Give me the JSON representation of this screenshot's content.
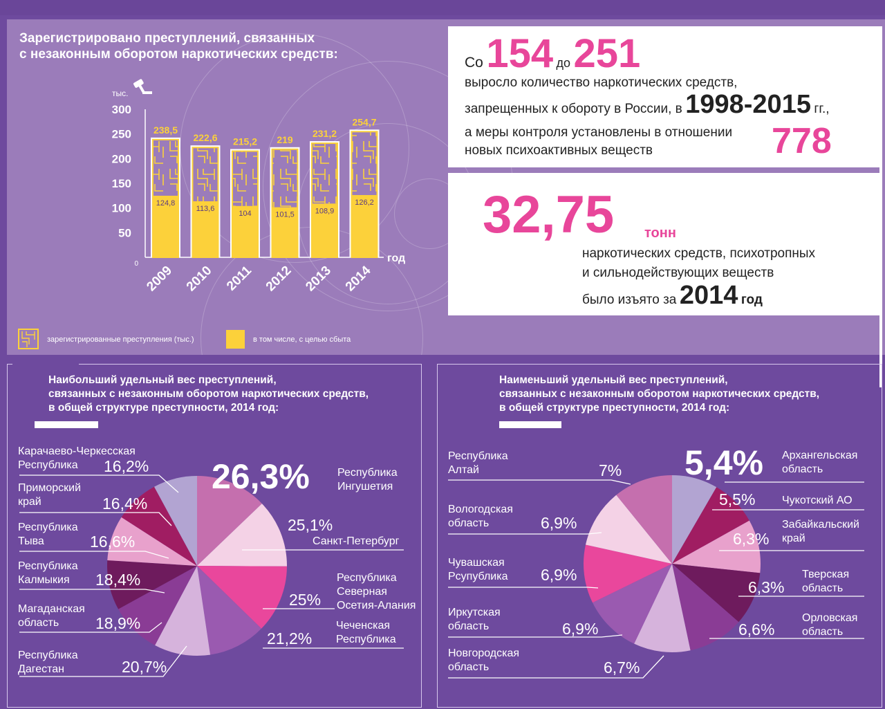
{
  "header": {
    "title_line1": "Зарегистрировано преступлений, связанных",
    "title_line2": "с незаконным оборотом наркотических средств:"
  },
  "chart_data": [
    {
      "type": "bar",
      "categories": [
        "2009",
        "2010",
        "2011",
        "2012",
        "2013",
        "2014"
      ],
      "series": [
        {
          "name": "зарегистрированные преступления (тыс.)",
          "values": [
            238.5,
            222.6,
            215.2,
            219,
            231.2,
            254.7
          ]
        },
        {
          "name": "в том числе, с целью сбыта",
          "values": [
            124.8,
            113.6,
            104,
            101.5,
            108.9,
            126.2
          ]
        }
      ],
      "total_labels": [
        "238,5",
        "222,6",
        "215,2",
        "219",
        "231,2",
        "254,7"
      ],
      "part_labels": [
        "124,8",
        "113,6",
        "104",
        "101,5",
        "108,9",
        "126,2"
      ],
      "yunit": "тыс.",
      "xlabel": "год",
      "yticks": [
        "300",
        "250",
        "200",
        "150",
        "100",
        "50",
        "0"
      ],
      "ylim": [
        0,
        300
      ],
      "legend": [
        "зарегистрированные преступления (тыс.)",
        "в том числе, с целью сбыта"
      ],
      "legend_position": "bottom"
    },
    {
      "type": "pie",
      "title": "Наибольший удельный вес преступлений, связанных с незаконным оборотом наркотических средств, в общей структуре преступности, 2014 год:",
      "labels": [
        "Республика Ингушетия",
        "Санкт-Петербург",
        "Республика Северная Осетия-Алания",
        "Чеченская Республика",
        "Республика Дагестан",
        "Магаданская область",
        "Республика Калмыкия",
        "Республика Тыва",
        "Приморский край",
        "Карачаево-Черкесская Республика"
      ],
      "values": [
        26.3,
        25.1,
        25,
        21.2,
        20.7,
        18.9,
        18.4,
        16.6,
        16.4,
        16.2
      ],
      "value_labels": [
        "26,3%",
        "25,1%",
        "25%",
        "21,2%",
        "20,7%",
        "18,9%",
        "18,4%",
        "16,6%",
        "16,4%",
        "16,2%"
      ],
      "colors": [
        "#c56fae",
        "#f4d2e6",
        "#e9479c",
        "#9a5ab0",
        "#d6b3dc",
        "#8a3c95",
        "#6e1b5d",
        "#e8a1cc",
        "#a01d62",
        "#b2a4d2"
      ]
    },
    {
      "type": "pie",
      "title": "Наименьший удельный вес преступлений, связанных с незаконным оборотом наркотических средств, в общей структуре преступности, 2014 год:",
      "labels": [
        "Архангельская область",
        "Чукотский АО",
        "Забайкальский край",
        "Тверская область",
        "Орловская область",
        "Новгородская область",
        "Иркутская область",
        "Чувашская Рсупублика",
        "Вологодская область",
        "Республика Алтай"
      ],
      "values": [
        5.4,
        5.5,
        6.3,
        6.3,
        6.6,
        6.7,
        6.9,
        6.9,
        6.9,
        7
      ],
      "value_labels": [
        "5,4%",
        "5,5%",
        "6,3%",
        "6,3%",
        "6,6%",
        "6,7%",
        "6,9%",
        "6,9%",
        "6,9%",
        "7%"
      ],
      "colors": [
        "#b2a4d2",
        "#a01d62",
        "#e8a1cc",
        "#6e1b5d",
        "#8a3c95",
        "#d6b3dc",
        "#9a5ab0",
        "#e9479c",
        "#f4d2e6",
        "#c56fae"
      ]
    }
  ],
  "stats1": {
    "co": "Со",
    "n1": "154",
    "do": "до",
    "n2": "251",
    "line1": "выросло количество наркотических средств,",
    "line2a": "запрещенных к обороту в России, в",
    "years": "1998-2015",
    "gg": "гг.,",
    "line3": "а меры контроля установлены в отношении",
    "line4": "новых психоактивных веществ",
    "n3": "778"
  },
  "stats2": {
    "amount": "32,75",
    "unit": "тонн",
    "line1": "наркотических средств, психотропных",
    "line2": "и сильнодействующих веществ",
    "line3a": "было изъято за",
    "year": "2014",
    "god": "год"
  },
  "left_panel": {
    "title_line1": "Наибольший удельный вес преступлений,",
    "title_line2": "связанных с незаконным оборотом наркотических средств,",
    "title_line3": "в общей структуре преступности, 2014 год:",
    "labels": {
      "kchr_1": "Карачаево-Черкесская",
      "kchr_2": "Республика",
      "prim_1": "Приморский",
      "prim_2": "край",
      "tyva_1": "Республика",
      "tyva_2": "Тыва",
      "kalm_1": "Республика",
      "kalm_2": "Калмыкия",
      "mag_1": "Магаданская",
      "mag_2": "область",
      "dag_1": "Республика",
      "dag_2": "Дагестан",
      "ing_1": "Республика",
      "ing_2": "Ингушетия",
      "spb": "Санкт-Петербург",
      "oset_1": "Республика",
      "oset_2": "Северная",
      "oset_3": "Осетия-Алания",
      "chech_1": "Чеченская",
      "chech_2": "Республика"
    }
  },
  "right_panel": {
    "title_line1": "Наименьший удельный вес преступлений,",
    "title_line2": "связанных с незаконным оборотом наркотических средств,",
    "title_line3": "в общей структуре преступности, 2014 год:",
    "labels": {
      "altai_1": "Республика",
      "altai_2": "Алтай",
      "volog_1": "Вологодская",
      "volog_2": "область",
      "chuv_1": "Чувашская",
      "chuv_2": "Рсупублика",
      "irk_1": "Иркутская",
      "irk_2": "область",
      "novg_1": "Новгородская",
      "novg_2": "область",
      "arh_1": "Архангельская",
      "arh_2": "область",
      "chuk": "Чукотский АО",
      "zab_1": "Забайкальский",
      "zab_2": "край",
      "tver_1": "Тверская",
      "tver_2": "область",
      "orel_1": "Орловская",
      "orel_2": "область"
    }
  },
  "colors": {
    "background": "#6e4a9e",
    "top_panel": "#9b7cba",
    "accent_pink": "#e8469a",
    "bar_yellow": "#fcd13a"
  },
  "icons": [
    "gavel-icon"
  ]
}
